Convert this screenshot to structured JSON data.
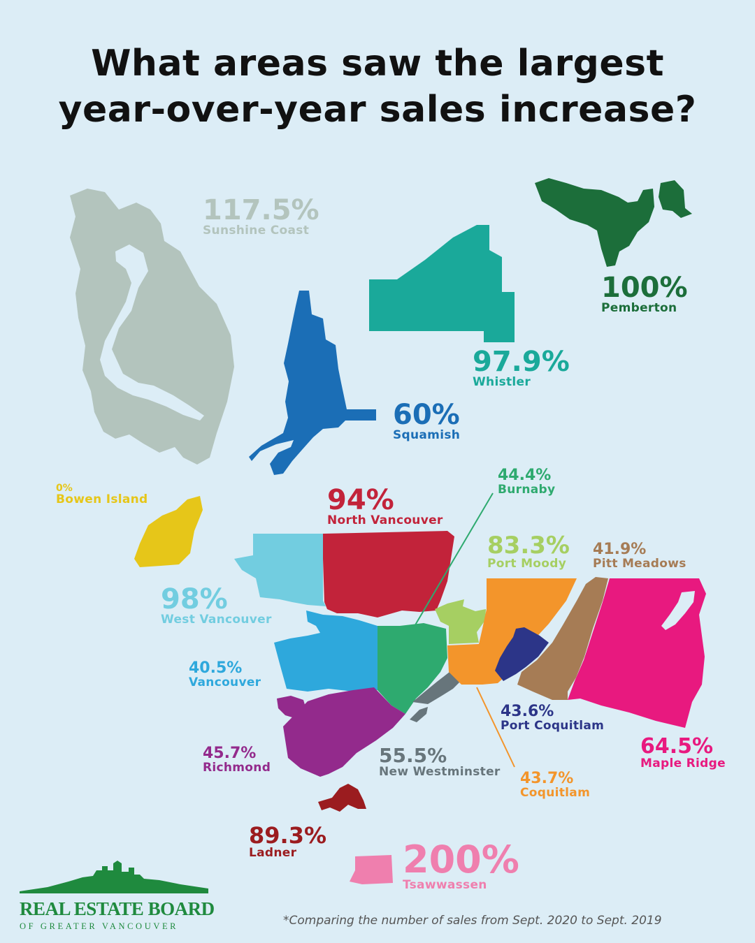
{
  "title": {
    "line1": "What areas saw the largest",
    "line2": "year-over-year sales increase?"
  },
  "regions": {
    "sunshine_coast": {
      "value": "117.5%",
      "name": "Sunshine Coast",
      "color": "#b3c4bd"
    },
    "pemberton": {
      "value": "100%",
      "name": "Pemberton",
      "color": "#1c6e3a"
    },
    "whistler": {
      "value": "97.9%",
      "name": "Whistler",
      "color": "#1aa99a"
    },
    "squamish": {
      "value": "60%",
      "name": "Squamish",
      "color": "#1b6eb6"
    },
    "bowen_island": {
      "value": "0%",
      "name": "Bowen Island",
      "color": "#e6c619"
    },
    "north_vancouver": {
      "value": "94%",
      "name": "North Vancouver",
      "color": "#c2233a"
    },
    "burnaby": {
      "value": "44.4%",
      "name": "Burnaby",
      "color": "#2eaa6f"
    },
    "port_moody": {
      "value": "83.3%",
      "name": "Port Moody",
      "color": "#a6cf62"
    },
    "pitt_meadows": {
      "value": "41.9%",
      "name": "Pitt Meadows",
      "color": "#a67c55"
    },
    "west_vancouver": {
      "value": "98%",
      "name": "West Vancouver",
      "color": "#72cde0"
    },
    "vancouver": {
      "value": "40.5%",
      "name": "Vancouver",
      "color": "#2ea8dc"
    },
    "port_coquitlam": {
      "value": "43.6%",
      "name": "Port Coquitlam",
      "color": "#2c3588"
    },
    "maple_ridge": {
      "value": "64.5%",
      "name": "Maple Ridge",
      "color": "#e8197f"
    },
    "richmond": {
      "value": "45.7%",
      "name": "Richmond",
      "color": "#932a8c"
    },
    "new_westminster": {
      "value": "55.5%",
      "name": "New Westminster",
      "color": "#67757b"
    },
    "coquitlam": {
      "value": "43.7%",
      "name": "Coquitlam",
      "color": "#f3952b"
    },
    "ladner": {
      "value": "89.3%",
      "name": "Ladner",
      "color": "#9b1c1f"
    },
    "tsawwassen": {
      "value": "200%",
      "name": "Tsawwassen",
      "color": "#ef7fae"
    }
  },
  "logo": {
    "line1": "REAL ESTATE BOARD",
    "line2": "OF GREATER VANCOUVER",
    "color": "#1f8a3e"
  },
  "footnote": "*Comparing the number of sales from Sept. 2020 to Sept. 2019"
}
